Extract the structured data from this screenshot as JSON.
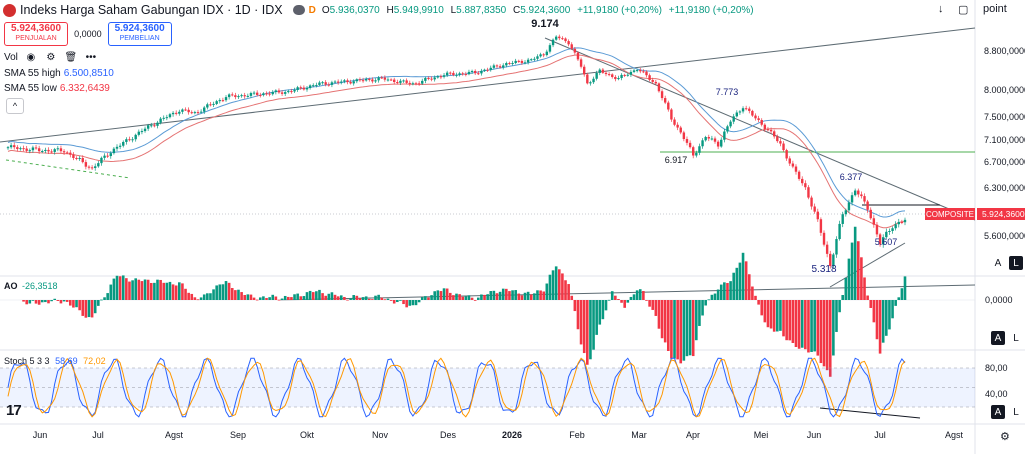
{
  "header": {
    "title": "Indeks Harga Saham Gabungan IDX · 1D · IDX",
    "interval_badge": "D",
    "ohlc": [
      {
        "key": "O",
        "value": "5.936,0370"
      },
      {
        "key": "H",
        "value": "5.949,9910"
      },
      {
        "key": "L",
        "value": "5.887,8350"
      },
      {
        "key": "C",
        "value": "5.924,3600"
      }
    ],
    "change": "+11,9180 (+0,20%)",
    "change_abs": "+11,9180 (+0,20%)",
    "scale_label": "point"
  },
  "trade": {
    "sell_price": "5.924,3600",
    "sell_label": "PENJUALAN",
    "spread": "0,0000",
    "buy_price": "5.924,3600",
    "buy_label": "PEMBELIAN"
  },
  "legend": {
    "vol": "Vol",
    "sma_high_label": "SMA 55 high",
    "sma_high_value": "6.500,8510",
    "sma_low_label": "SMA 55 low",
    "sma_low_value": "6.332,6439"
  },
  "ao": {
    "label": "AO",
    "value": "-26,3518",
    "zero_label": "0,0000"
  },
  "stoch": {
    "label": "Stoch 5 3 3",
    "k_value": "58,69",
    "d_value": "72,02",
    "levels": [
      "80,00",
      "40,00"
    ]
  },
  "price_axis": [
    "8.800,0000",
    "8.000,0000",
    "7.500,0000",
    "7.100,0000",
    "6.700,0000",
    "6.300,0000",
    "5.600,0000"
  ],
  "last_price_tag": {
    "name": "COMPOSITE",
    "value": "5.924,3600"
  },
  "time_axis": [
    "Jun",
    "Jul",
    "Agst",
    "Sep",
    "Okt",
    "Nov",
    "Des",
    "2026",
    "Feb",
    "Mar",
    "Apr",
    "Mei",
    "Jun",
    "Jul",
    "Agst"
  ],
  "annotations": [
    "9.174",
    "7.773",
    "6.917",
    "6.377",
    "5.607",
    "5.318"
  ],
  "buttons": {
    "a": "A",
    "l": "L"
  },
  "logo_text": "17",
  "colors": {
    "up": "#089981",
    "down": "#f23645",
    "sma_high": "#5b9bd5",
    "sma_low": "#e57373",
    "k": "#2962ff",
    "d": "#ff9800"
  },
  "chart_data": {
    "type": "line",
    "series": [
      {
        "name": "Indeks Harga Saham Gabungan IDX",
        "x": [
          "Jun",
          "Jul",
          "Agst",
          "Sep",
          "Okt",
          "Nov",
          "Des",
          "2026",
          "Feb",
          "Mar",
          "Apr",
          "Mei",
          "Jun",
          "Jul"
        ],
        "values": [
          7050,
          6950,
          7700,
          7950,
          8250,
          8500,
          8650,
          9100,
          8400,
          7600,
          7700,
          6700,
          5600,
          5924
        ]
      },
      {
        "name": "SMA 55 high",
        "values": [
          6800,
          6950,
          7300,
          7650,
          7950,
          8200,
          8450,
          8700,
          8650,
          8300,
          7850,
          7300,
          6700,
          6500
        ]
      },
      {
        "name": "SMA 55 low",
        "values": [
          6650,
          6800,
          7150,
          7500,
          7800,
          8050,
          8300,
          8550,
          8500,
          8150,
          7700,
          7150,
          6550,
          6330
        ]
      }
    ],
    "ylim": [
      5200,
      9500
    ],
    "indicator_ao": {
      "name": "AO",
      "last": -26.3518
    },
    "indicator_stoch": {
      "name": "Stoch 5 3 3",
      "k": 58.69,
      "d": 72.02,
      "upper": 80,
      "lower": 40
    }
  }
}
